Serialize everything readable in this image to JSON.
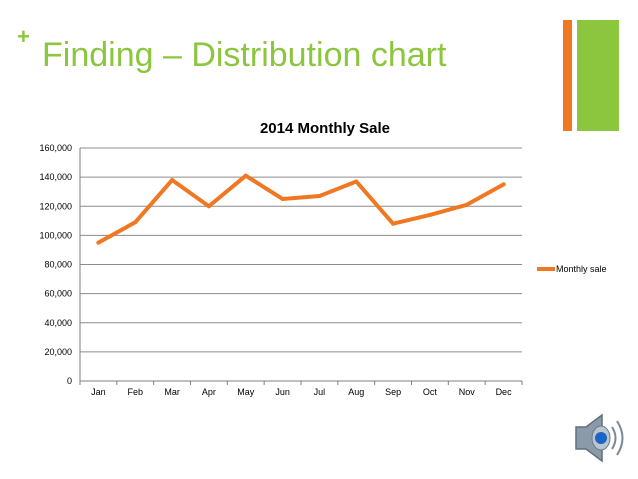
{
  "slide": {
    "plus_symbol": "+",
    "title": "Finding – Distribution chart"
  },
  "colors": {
    "accent_green": "#8cc63f",
    "accent_orange": "#f07822",
    "series_line": "#f07822"
  },
  "icons": {
    "audio": "speaker-icon"
  },
  "chart_data": {
    "type": "line",
    "title": "2014 Monthly Sale",
    "xlabel": "",
    "ylabel": "",
    "categories": [
      "Jan",
      "Feb",
      "Mar",
      "Apr",
      "May",
      "Jun",
      "Jul",
      "Aug",
      "Sep",
      "Oct",
      "Nov",
      "Dec"
    ],
    "series": [
      {
        "name": "Monthly sale",
        "values": [
          95000,
          109000,
          138000,
          120000,
          141000,
          125000,
          127000,
          137000,
          108000,
          114000,
          121000,
          135000
        ]
      }
    ],
    "ylim": [
      0,
      160000
    ],
    "yticks": [
      0,
      20000,
      40000,
      60000,
      80000,
      100000,
      120000,
      140000,
      160000
    ],
    "ytick_labels": [
      "0",
      "20,000",
      "40,000",
      "60,000",
      "80,000",
      "100,000",
      "120,000",
      "140,000",
      "160,000"
    ],
    "grid": true,
    "legend_position": "right"
  }
}
